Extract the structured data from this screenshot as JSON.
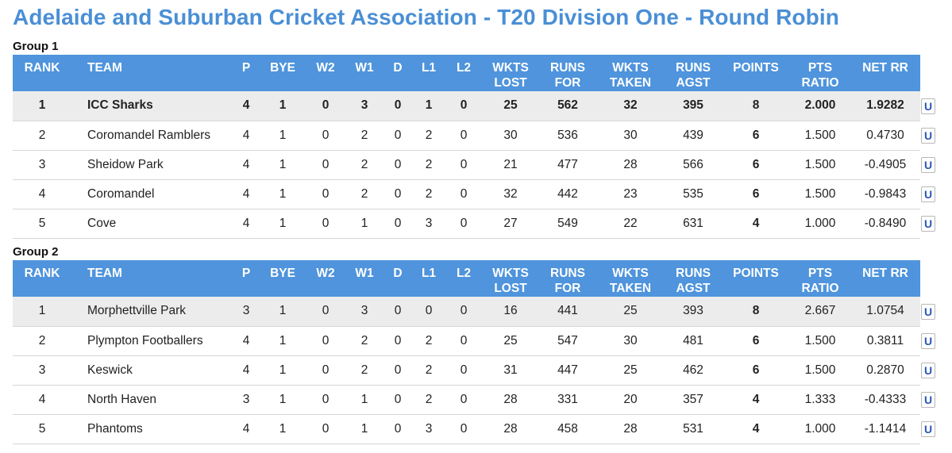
{
  "page": {
    "title": "Adelaide and Suburban Cricket Association - T20 Division One - Round Robin"
  },
  "columns": {
    "rank": "RANK",
    "team": "TEAM",
    "p": "P",
    "bye": "BYE",
    "w2": "W2",
    "w1": "W1",
    "d": "D",
    "l1": "L1",
    "l2": "L2",
    "wkts_lost": [
      "WKTS",
      "LOST"
    ],
    "runs_for": [
      "RUNS",
      "FOR"
    ],
    "wkts_taken": [
      "WKTS",
      "TAKEN"
    ],
    "runs_agst": [
      "RUNS",
      "AGST"
    ],
    "points": "POINTS",
    "pts_ratio": [
      "PTS",
      "RATIO"
    ],
    "net_rr": "NET RR"
  },
  "update_button_label": "U",
  "colors": {
    "title": "#4a8fd6",
    "header_bg": "#4f94dc",
    "highlight_row": "#ececec",
    "update_button_text": "#2a56b8"
  },
  "groups": [
    {
      "label": "Group 1",
      "rows": [
        {
          "rank": "1",
          "team": "ICC Sharks",
          "p": "4",
          "bye": "1",
          "w2": "0",
          "w1": "3",
          "d": "0",
          "l1": "1",
          "l2": "0",
          "wkts_lost": "25",
          "runs_for": "562",
          "wkts_taken": "32",
          "runs_agst": "395",
          "points": "8",
          "pts_ratio": "2.000",
          "net_rr": "1.9282"
        },
        {
          "rank": "2",
          "team": "Coromandel Ramblers",
          "p": "4",
          "bye": "1",
          "w2": "0",
          "w1": "2",
          "d": "0",
          "l1": "2",
          "l2": "0",
          "wkts_lost": "30",
          "runs_for": "536",
          "wkts_taken": "30",
          "runs_agst": "439",
          "points": "6",
          "pts_ratio": "1.500",
          "net_rr": "0.4730"
        },
        {
          "rank": "3",
          "team": "Sheidow Park",
          "p": "4",
          "bye": "1",
          "w2": "0",
          "w1": "2",
          "d": "0",
          "l1": "2",
          "l2": "0",
          "wkts_lost": "21",
          "runs_for": "477",
          "wkts_taken": "28",
          "runs_agst": "566",
          "points": "6",
          "pts_ratio": "1.500",
          "net_rr": "-0.4905"
        },
        {
          "rank": "4",
          "team": "Coromandel",
          "p": "4",
          "bye": "1",
          "w2": "0",
          "w1": "2",
          "d": "0",
          "l1": "2",
          "l2": "0",
          "wkts_lost": "32",
          "runs_for": "442",
          "wkts_taken": "23",
          "runs_agst": "535",
          "points": "6",
          "pts_ratio": "1.500",
          "net_rr": "-0.9843"
        },
        {
          "rank": "5",
          "team": "Cove",
          "p": "4",
          "bye": "1",
          "w2": "0",
          "w1": "1",
          "d": "0",
          "l1": "3",
          "l2": "0",
          "wkts_lost": "27",
          "runs_for": "549",
          "wkts_taken": "22",
          "runs_agst": "631",
          "points": "4",
          "pts_ratio": "1.000",
          "net_rr": "-0.8490"
        }
      ]
    },
    {
      "label": "Group 2",
      "rows": [
        {
          "rank": "1",
          "team": "Morphettville Park",
          "p": "3",
          "bye": "1",
          "w2": "0",
          "w1": "3",
          "d": "0",
          "l1": "0",
          "l2": "0",
          "wkts_lost": "16",
          "runs_for": "441",
          "wkts_taken": "25",
          "runs_agst": "393",
          "points": "8",
          "pts_ratio": "2.667",
          "net_rr": "1.0754"
        },
        {
          "rank": "2",
          "team": "Plympton Footballers",
          "p": "4",
          "bye": "1",
          "w2": "0",
          "w1": "2",
          "d": "0",
          "l1": "2",
          "l2": "0",
          "wkts_lost": "25",
          "runs_for": "547",
          "wkts_taken": "30",
          "runs_agst": "481",
          "points": "6",
          "pts_ratio": "1.500",
          "net_rr": "0.3811"
        },
        {
          "rank": "3",
          "team": "Keswick",
          "p": "4",
          "bye": "1",
          "w2": "0",
          "w1": "2",
          "d": "0",
          "l1": "2",
          "l2": "0",
          "wkts_lost": "31",
          "runs_for": "447",
          "wkts_taken": "25",
          "runs_agst": "462",
          "points": "6",
          "pts_ratio": "1.500",
          "net_rr": "0.2870"
        },
        {
          "rank": "4",
          "team": "North Haven",
          "p": "3",
          "bye": "1",
          "w2": "0",
          "w1": "1",
          "d": "0",
          "l1": "2",
          "l2": "0",
          "wkts_lost": "28",
          "runs_for": "331",
          "wkts_taken": "20",
          "runs_agst": "357",
          "points": "4",
          "pts_ratio": "1.333",
          "net_rr": "-0.4333"
        },
        {
          "rank": "5",
          "team": "Phantoms",
          "p": "4",
          "bye": "1",
          "w2": "0",
          "w1": "1",
          "d": "0",
          "l1": "3",
          "l2": "0",
          "wkts_lost": "28",
          "runs_for": "458",
          "wkts_taken": "28",
          "runs_agst": "531",
          "points": "4",
          "pts_ratio": "1.000",
          "net_rr": "-1.1414"
        }
      ]
    }
  ]
}
